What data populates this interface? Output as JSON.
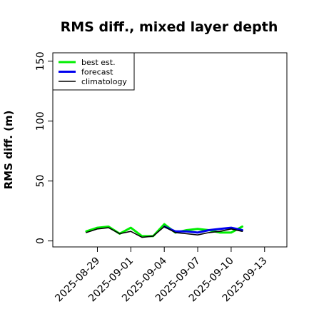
{
  "chart_data": {
    "type": "line",
    "title": "RMS diff., mixed layer depth",
    "xlabel": "",
    "ylabel": "RMS diff. (m)",
    "ylim": [
      -5,
      157
    ],
    "yticks": [
      0,
      50,
      100,
      150
    ],
    "xlim": [
      "2025-08-25",
      "2025-09-15"
    ],
    "xticks": [
      "2025-08-29",
      "2025-09-01",
      "2025-09-04",
      "2025-09-07",
      "2025-09-10",
      "2025-09-13"
    ],
    "highlighted_xtick": "2025-09-04",
    "highlight_color": "#228b22",
    "legend_position": "top-left",
    "grid": false,
    "series": [
      {
        "name": "best est.",
        "color": "#00ee00",
        "width": 3,
        "x": [
          "2025-08-28",
          "2025-08-29",
          "2025-08-30",
          "2025-08-31",
          "2025-09-01",
          "2025-09-02",
          "2025-09-03",
          "2025-09-04",
          "2025-09-05",
          "2025-09-06",
          "2025-09-07",
          "2025-09-08",
          "2025-09-09",
          "2025-09-10",
          "2025-09-11"
        ],
        "y": [
          8,
          11,
          12,
          6,
          11,
          4,
          4,
          14,
          7,
          9,
          10,
          9,
          7,
          7,
          12
        ]
      },
      {
        "name": "forecast",
        "color": "#0000ee",
        "width": 3,
        "x": [
          "2025-09-04",
          "2025-09-05",
          "2025-09-06",
          "2025-09-07",
          "2025-09-08",
          "2025-09-09",
          "2025-09-10",
          "2025-09-11"
        ],
        "y": [
          12,
          8,
          8,
          7,
          9,
          10,
          11,
          9
        ]
      },
      {
        "name": "climatology",
        "color": "#000000",
        "width": 1.6,
        "x": [
          "2025-08-28",
          "2025-08-29",
          "2025-08-30",
          "2025-08-31",
          "2025-09-01",
          "2025-09-02",
          "2025-09-03",
          "2025-09-04",
          "2025-09-05",
          "2025-09-06",
          "2025-09-07",
          "2025-09-08",
          "2025-09-09",
          "2025-09-10",
          "2025-09-11"
        ],
        "y": [
          7,
          10,
          11,
          6,
          8,
          3,
          4,
          12,
          7,
          6,
          5,
          7,
          8,
          10,
          8
        ]
      }
    ]
  }
}
